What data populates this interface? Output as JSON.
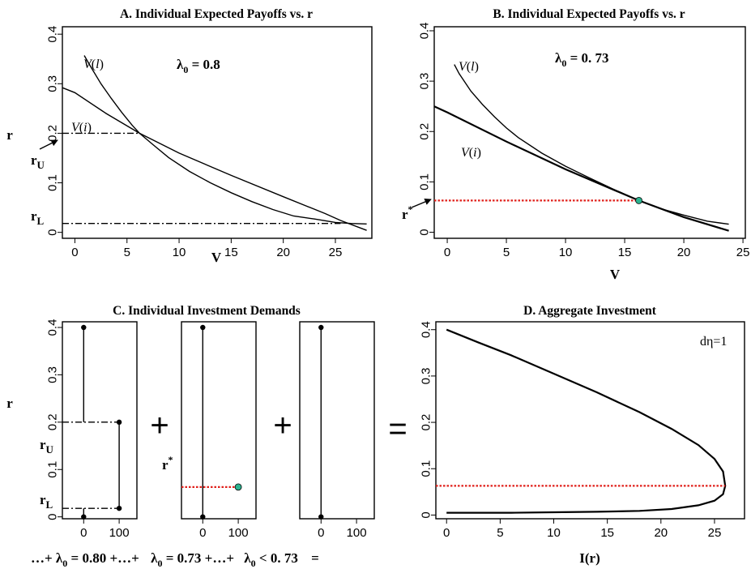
{
  "chart_data": [
    {
      "id": "A",
      "type": "line",
      "title": "A. Individual Expected Payoffs vs. r",
      "xlabel": "V",
      "ylabel": "r",
      "xlim": [
        -1.2,
        28.5
      ],
      "ylim": [
        -0.012,
        0.415
      ],
      "xticks": [
        0,
        5,
        10,
        15,
        20,
        25
      ],
      "yticks": [
        0,
        0.1,
        0.2,
        0.3,
        0.4
      ],
      "ytick_labels": [
        "0",
        "0.1",
        "0.2",
        "0.3",
        "0.4"
      ],
      "annotation": "λ0 = 0.8",
      "series": [
        {
          "name": "V(l)",
          "x": [
            0.9,
            1.5,
            2.5,
            3.5,
            4.5,
            5.5,
            6.2,
            7.5,
            9,
            11,
            13,
            15,
            17,
            19,
            21,
            23,
            25,
            26.5,
            28
          ],
          "y": [
            0.357,
            0.335,
            0.3,
            0.27,
            0.242,
            0.216,
            0.2,
            0.177,
            0.151,
            0.123,
            0.1,
            0.08,
            0.062,
            0.046,
            0.033,
            0.027,
            0.02,
            0.018,
            0.017
          ]
        },
        {
          "name": "V(i)",
          "x": [
            -1.2,
            0,
            3,
            6.2,
            10,
            15,
            20,
            24,
            25.5,
            28
          ],
          "y": [
            0.292,
            0.282,
            0.24,
            0.2,
            0.16,
            0.115,
            0.072,
            0.038,
            0.024,
            0.004
          ]
        }
      ],
      "markers": [
        {
          "label": "rU",
          "r": 0.2,
          "v_end": 6.2
        },
        {
          "label": "rL",
          "r": 0.018,
          "v_end": 25.5
        }
      ],
      "curve_labels": [
        {
          "text": "V(l)",
          "x": 1.2,
          "y": 0.357
        },
        {
          "text": "V(i)",
          "x": -0.3,
          "y": 0.221
        }
      ]
    },
    {
      "id": "B",
      "type": "line",
      "title": "B. Individual Expected Payoffs vs. r",
      "xlabel": "V",
      "ylabel": "",
      "xlim": [
        -1.1,
        25.2
      ],
      "ylim": [
        -0.012,
        0.408
      ],
      "xticks": [
        0,
        5,
        10,
        15,
        20,
        25
      ],
      "yticks": [
        0,
        0.1,
        0.2,
        0.3,
        0.4
      ],
      "ytick_labels": [
        "0",
        "0.1",
        "0.2",
        "0.3",
        "0.4"
      ],
      "annotation": "λ0 = 0. 73",
      "series": [
        {
          "name": "V(l)",
          "x": [
            0.6,
            1,
            2,
            3,
            4,
            5,
            6,
            8,
            10,
            12,
            14,
            16.2,
            18,
            20,
            22,
            23.8
          ],
          "y": [
            0.333,
            0.315,
            0.28,
            0.253,
            0.229,
            0.207,
            0.188,
            0.157,
            0.131,
            0.108,
            0.086,
            0.063,
            0.047,
            0.034,
            0.022,
            0.016
          ]
        },
        {
          "name": "V(i)",
          "x": [
            -1.1,
            0,
            5,
            10,
            16.2,
            20,
            23.8
          ],
          "y": [
            0.25,
            0.238,
            0.18,
            0.125,
            0.063,
            0.03,
            0.003
          ]
        }
      ],
      "markers": [
        {
          "label": "r*",
          "r": 0.063,
          "v_end": 16.2
        }
      ],
      "point": {
        "x": 16.2,
        "y": 0.063,
        "color": "#2bb38f"
      },
      "curve_labels": [
        {
          "text": "V(l)",
          "x": 0.3,
          "y": 0.343
        },
        {
          "text": "V(i)",
          "x": 0.6,
          "y": 0.162
        }
      ]
    },
    {
      "id": "C",
      "type": "line",
      "title": "C. Individual Investment Demands",
      "ylabel": "r",
      "xlim": [
        -60,
        150
      ],
      "ylim": [
        -0.004,
        0.412
      ],
      "xticks": [
        0,
        100
      ],
      "yticks": [
        0,
        0.1,
        0.2,
        0.3,
        0.4
      ],
      "ytick_labels": [
        "0",
        "0.1",
        "0.2",
        "0.3",
        "0.4"
      ],
      "operators": [
        "+",
        "+",
        "="
      ],
      "panels": [
        {
          "caption": "…+ λ0 = 0.80 +…+",
          "markers": [
            {
              "label": "rU",
              "r": 0.2
            },
            {
              "label": "rL",
              "r": 0.018
            }
          ],
          "show_yticks": true
        },
        {
          "caption": "λ0 = 0.73 +…+",
          "markers": [
            {
              "label": "r*",
              "r": 0.063
            }
          ],
          "show_yticks": false
        },
        {
          "caption": "λ0 < 0. 73 =",
          "markers": [],
          "show_yticks": false
        }
      ]
    },
    {
      "id": "D",
      "type": "line",
      "title": "D. Aggregate Investment",
      "xlabel": "I(r)",
      "ylabel": "",
      "xlim": [
        -1,
        27.8
      ],
      "ylim": [
        -0.008,
        0.417
      ],
      "xticks": [
        0,
        5,
        10,
        15,
        20,
        25
      ],
      "yticks": [
        0,
        0.1,
        0.2,
        0.3,
        0.4
      ],
      "ytick_labels": [
        "0",
        "0.1",
        "0.2",
        "0.3",
        "0.4"
      ],
      "annotation": "dη=1",
      "series": [
        {
          "name": "I(r)",
          "x": [
            0,
            3,
            6,
            10,
            14,
            18,
            21,
            23.5,
            25,
            25.8,
            26,
            25.8,
            25,
            23.5,
            21,
            18,
            14,
            10,
            6,
            3,
            0
          ],
          "y": [
            0.4,
            0.372,
            0.345,
            0.305,
            0.265,
            0.222,
            0.186,
            0.151,
            0.121,
            0.094,
            0.063,
            0.045,
            0.031,
            0.021,
            0.013,
            0.009,
            0.007,
            0.006,
            0.005,
            0.005,
            0.005
          ]
        }
      ],
      "markers": [
        {
          "label": "r*",
          "r": 0.063,
          "v_end": 26
        }
      ]
    }
  ]
}
